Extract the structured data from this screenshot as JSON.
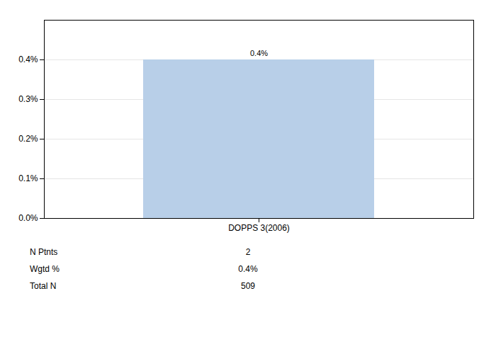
{
  "chart_data": {
    "type": "bar",
    "categories": [
      "DOPPS 3(2006)"
    ],
    "values": [
      0.004
    ],
    "value_labels": [
      "0.4%"
    ],
    "data_labels": true,
    "color": "#b8cfe8",
    "ylim": [
      0,
      0.005
    ],
    "yticks": [
      {
        "value": 0.0,
        "label": "0.0%"
      },
      {
        "value": 0.001,
        "label": "0.1%"
      },
      {
        "value": 0.002,
        "label": "0.2%"
      },
      {
        "value": 0.003,
        "label": "0.3%"
      },
      {
        "value": 0.004,
        "label": "0.4%"
      }
    ],
    "grid": true,
    "table": {
      "rows": [
        "N Ptnts",
        "Wgtd %",
        "Total N"
      ],
      "cells": [
        "2",
        "0.4%",
        "509"
      ]
    }
  }
}
